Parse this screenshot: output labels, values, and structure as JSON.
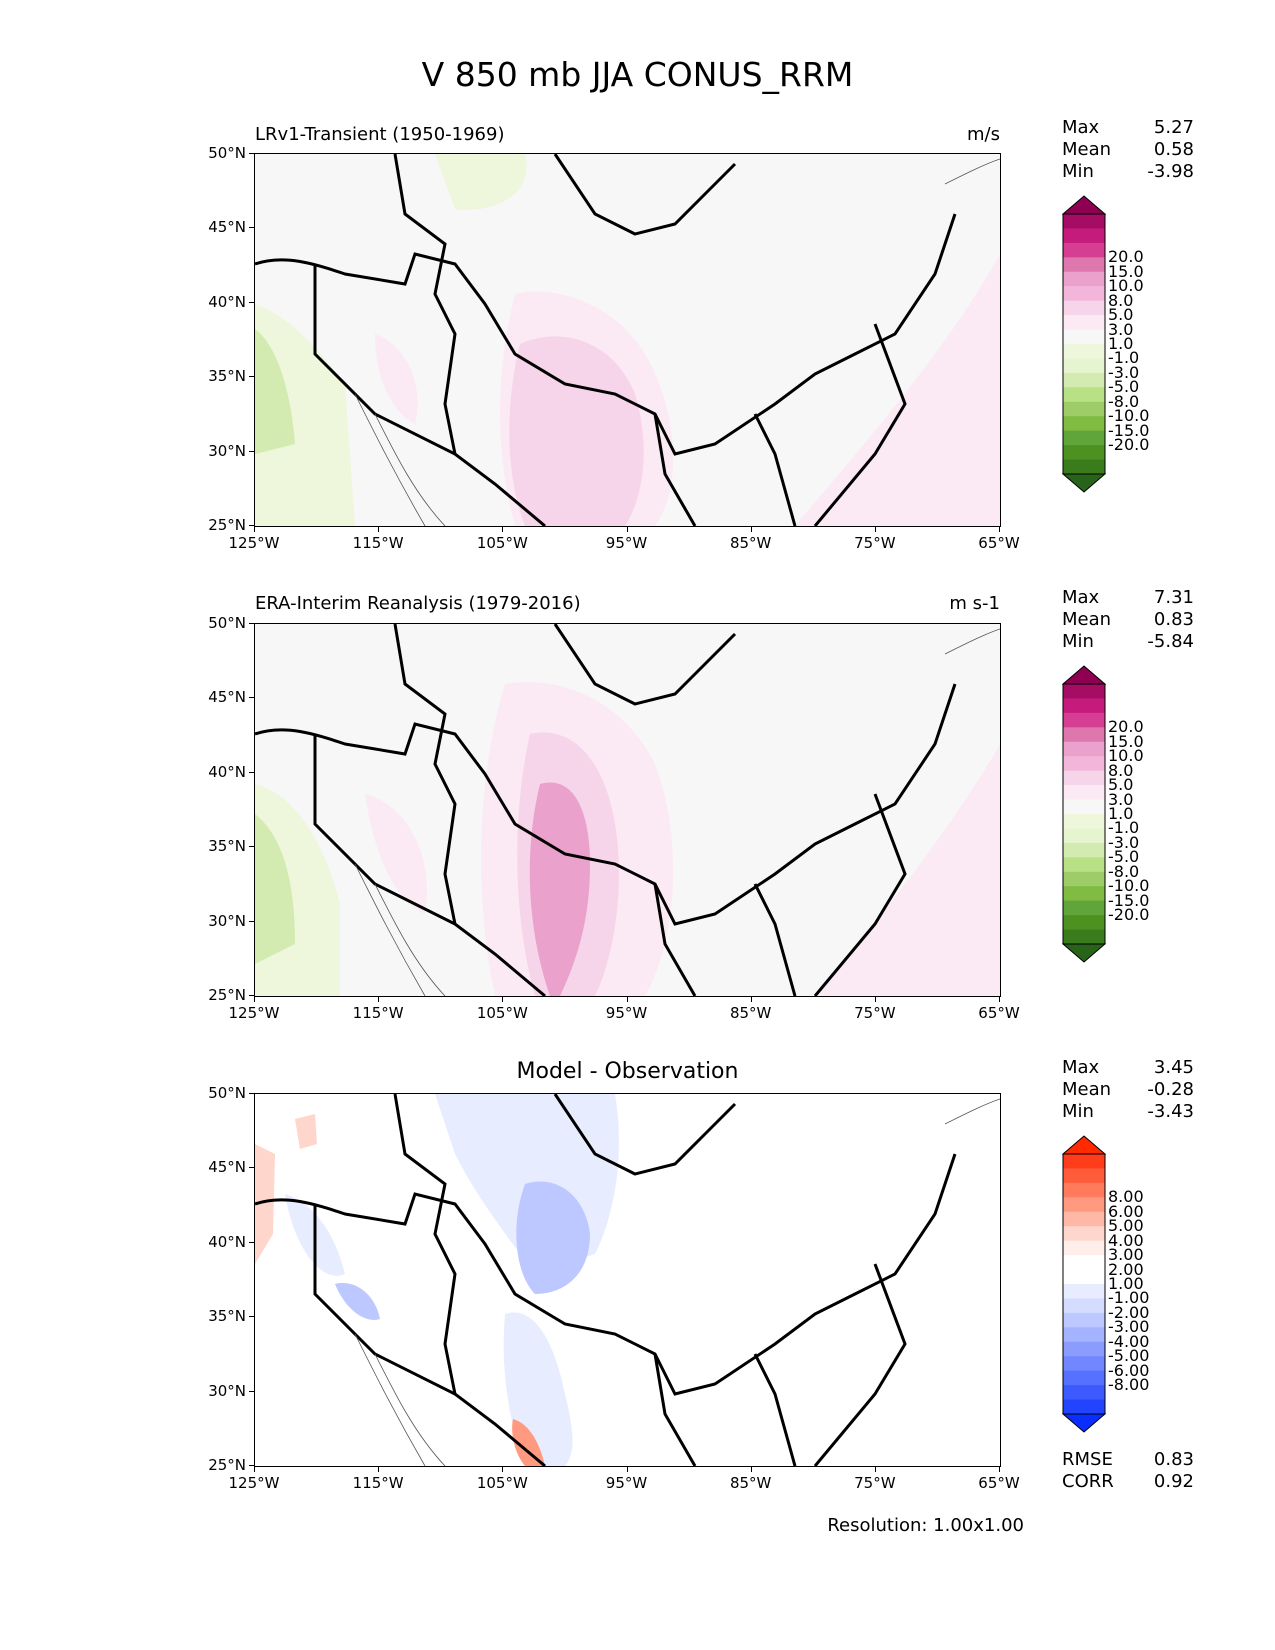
{
  "figure": {
    "title": "V 850 mb JJA CONUS_RRM",
    "resolution": "Resolution: 1.00x1.00"
  },
  "axes": {
    "lat_ticks": [
      "50°N",
      "45°N",
      "40°N",
      "35°N",
      "30°N",
      "25°N"
    ],
    "lon_ticks": [
      "125°W",
      "115°W",
      "105°W",
      "95°W",
      "85°W",
      "75°W",
      "65°W"
    ]
  },
  "panels": [
    {
      "title": "LRv1-Transient (1950-1969)",
      "units": "m/s",
      "stats": [
        {
          "label": "Max",
          "value": "5.27"
        },
        {
          "label": "Mean",
          "value": "0.58"
        },
        {
          "label": "Min",
          "value": "-3.98"
        }
      ],
      "colorbar": {
        "labels": [
          "20.0",
          "15.0",
          "10.0",
          "8.0",
          "5.0",
          "3.0",
          "1.0",
          "-1.0",
          "-3.0",
          "-5.0",
          "-8.0",
          "-10.0",
          "-15.0",
          "-20.0"
        ],
        "colors": [
          "#8e0152",
          "#a50c63",
          "#c51b7d",
          "#d53e92",
          "#de77ae",
          "#eaa2cc",
          "#f1b6da",
          "#f6d4e9",
          "#fbeaf3",
          "#f7f7f7",
          "#eef6dc",
          "#e6f5d0",
          "#d3ebb0",
          "#b8e186",
          "#9dcc68",
          "#7fbc41",
          "#5fa53a",
          "#4d9221",
          "#3a7c1b",
          "#276419"
        ]
      }
    },
    {
      "title": "ERA-Interim Reanalysis (1979-2016)",
      "units": "m s-1",
      "stats": [
        {
          "label": "Max",
          "value": "7.31"
        },
        {
          "label": "Mean",
          "value": "0.83"
        },
        {
          "label": "Min",
          "value": "-5.84"
        }
      ],
      "colorbar": {
        "labels": [
          "20.0",
          "15.0",
          "10.0",
          "8.0",
          "5.0",
          "3.0",
          "1.0",
          "-1.0",
          "-3.0",
          "-5.0",
          "-8.0",
          "-10.0",
          "-15.0",
          "-20.0"
        ],
        "colors": [
          "#8e0152",
          "#a50c63",
          "#c51b7d",
          "#d53e92",
          "#de77ae",
          "#eaa2cc",
          "#f1b6da",
          "#f6d4e9",
          "#fbeaf3",
          "#f7f7f7",
          "#eef6dc",
          "#e6f5d0",
          "#d3ebb0",
          "#b8e186",
          "#9dcc68",
          "#7fbc41",
          "#5fa53a",
          "#4d9221",
          "#3a7c1b",
          "#276419"
        ]
      }
    },
    {
      "title": "Model - Observation",
      "units": "",
      "stats": [
        {
          "label": "Max",
          "value": "3.45"
        },
        {
          "label": "Mean",
          "value": "-0.28"
        },
        {
          "label": "Min",
          "value": "-3.43"
        }
      ],
      "metrics": [
        {
          "label": "RMSE",
          "value": "0.83"
        },
        {
          "label": "CORR",
          "value": "0.92"
        }
      ],
      "colorbar": {
        "labels": [
          "8.00",
          "6.00",
          "5.00",
          "4.00",
          "3.00",
          "2.00",
          "1.00",
          "-1.00",
          "-2.00",
          "-3.00",
          "-4.00",
          "-5.00",
          "-6.00",
          "-8.00"
        ],
        "colors": [
          "#ff2a00",
          "#ff3d1a",
          "#ff5c3b",
          "#ff7b5c",
          "#ff9a80",
          "#ffb8a6",
          "#ffd6cc",
          "#ffeeea",
          "#ffffff",
          "#ffffff",
          "#e8ecff",
          "#d4dcff",
          "#bcc8ff",
          "#a3b3ff",
          "#8a9dff",
          "#7087ff",
          "#5670ff",
          "#3d5aff",
          "#2344ff",
          "#0a2eff"
        ]
      }
    }
  ]
}
